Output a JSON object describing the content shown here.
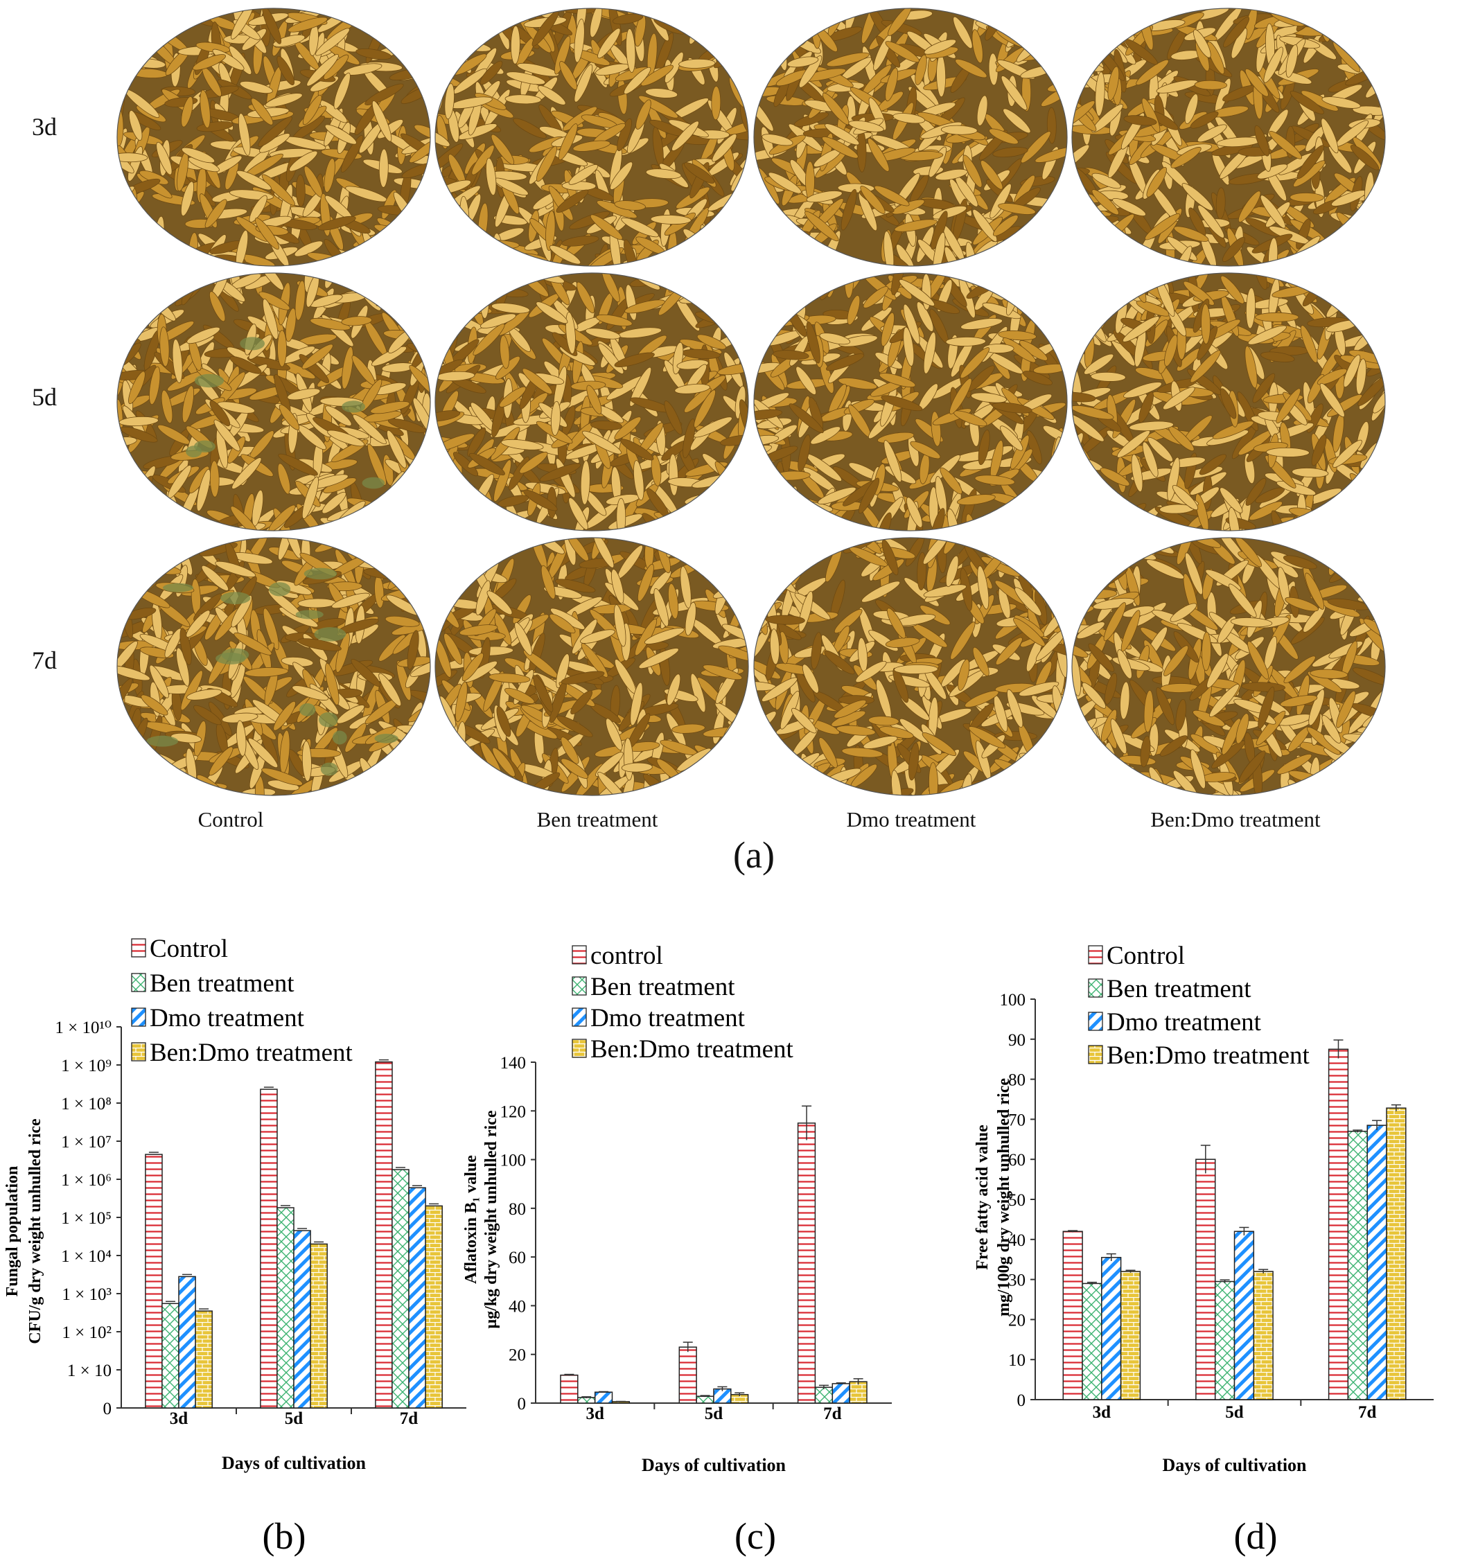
{
  "panel_a": {
    "tag": "(a)",
    "rows": [
      "3d",
      "5d",
      "7d"
    ],
    "columns": [
      "Control",
      "Ben  treatment",
      "Dmo treatment",
      "Ben:Dmo treatment"
    ],
    "colors": {
      "grain_base": "#c8922f",
      "grain_light": "#e8c069",
      "grain_dark": "#8a5d17",
      "mold": "#7a8a4a"
    }
  },
  "colors": {
    "control": "#d9262f",
    "ben": "#3cb371",
    "dmo": "#1e90ff",
    "bendmo": "#e8c53a"
  },
  "chart_data": [
    {
      "panel": "(b)",
      "type": "bar",
      "scale": "log",
      "categories": [
        "3d",
        "5d",
        "7d"
      ],
      "series": [
        {
          "name": "Control",
          "values": [
            4500000,
            230000000,
            1200000000
          ]
        },
        {
          "name": "Ben treatment",
          "values": [
            550,
            180000,
            1800000
          ]
        },
        {
          "name": "Dmo treatment",
          "values": [
            2800,
            45000,
            600000
          ]
        },
        {
          "name": "Ben:Dmo treatment",
          "values": [
            350,
            20000,
            200000
          ]
        }
      ],
      "y_ticks": [
        {
          "value": 1,
          "label": "0"
        },
        {
          "value": 10,
          "label": "1 × 10"
        },
        {
          "value": 100,
          "label": "1 × 10²"
        },
        {
          "value": 1000,
          "label": "1 × 10³"
        },
        {
          "value": 10000,
          "label": "1 × 10⁴"
        },
        {
          "value": 100000,
          "label": "1 × 10⁵"
        },
        {
          "value": 1000000,
          "label": "1 × 10⁶"
        },
        {
          "value": 10000000,
          "label": "1 × 10⁷"
        },
        {
          "value": 100000000,
          "label": "1 × 10⁸"
        },
        {
          "value": 1000000000,
          "label": "1 × 10⁹"
        },
        {
          "value": 10000000000,
          "label": "1 × 10¹⁰"
        }
      ],
      "ylim": [
        1,
        10000000000
      ],
      "xlabel": "Days of cultivation",
      "ylabel_line1": "Fungal population",
      "ylabel_line2": "CFU/g dry weight unhulled rice",
      "legend": [
        "Control",
        "Ben treatment",
        "Dmo treatment",
        "Ben:Dmo treatment"
      ]
    },
    {
      "panel": "(c)",
      "type": "bar",
      "categories": [
        "3d",
        "5d",
        "7d"
      ],
      "series": [
        {
          "name": "control",
          "values": [
            11.5,
            23,
            115
          ],
          "errors": [
            0.3,
            2.0,
            7.0
          ]
        },
        {
          "name": "Ben treatment",
          "values": [
            2.3,
            2.8,
            6.5
          ],
          "errors": [
            0.3,
            0.3,
            0.8
          ]
        },
        {
          "name": "Dmo treatment",
          "values": [
            4.5,
            5.8,
            8.0
          ],
          "errors": [
            0.2,
            0.9,
            0.3
          ]
        },
        {
          "name": "Ben:Dmo treatment",
          "values": [
            0.6,
            3.5,
            8.8
          ],
          "errors": [
            0.1,
            0.7,
            1.2
          ]
        }
      ],
      "y_ticks": [
        0,
        20,
        40,
        60,
        80,
        100,
        120,
        140
      ],
      "ylim": [
        0,
        140
      ],
      "xlabel": "Days of cultivation",
      "ylabel_line1": "Aflatoxin B₁ value",
      "ylabel_line2": "μg/kg dry weight unhulled rice",
      "legend": [
        "control",
        "Ben treatment",
        "Dmo treatment",
        "Ben:Dmo treatment"
      ]
    },
    {
      "panel": "(d)",
      "type": "bar",
      "categories": [
        "3d",
        "5d",
        "7d"
      ],
      "series": [
        {
          "name": "Control",
          "values": [
            42,
            60,
            87.5
          ],
          "errors": [
            0.2,
            3.5,
            2.3
          ]
        },
        {
          "name": "Ben treatment",
          "values": [
            29,
            29.5,
            67
          ],
          "errors": [
            0.3,
            0.4,
            0.3
          ]
        },
        {
          "name": "Dmo treatment",
          "values": [
            35.5,
            42,
            68.5
          ],
          "errors": [
            0.9,
            1.0,
            1.2
          ]
        },
        {
          "name": "Ben:Dmo treatment",
          "values": [
            32,
            32,
            72.8
          ],
          "errors": [
            0.3,
            0.5,
            0.8
          ]
        }
      ],
      "y_ticks": [
        0,
        10,
        20,
        30,
        40,
        50,
        60,
        70,
        80,
        90,
        100
      ],
      "ylim": [
        0,
        100
      ],
      "xlabel": "Days of cultivation",
      "ylabel_line1": "Free fatty acid value",
      "ylabel_line2": "mg/100g dry weight unhulled rice",
      "legend": [
        "Control",
        "Ben treatment",
        "Dmo treatment",
        "Ben:Dmo treatment"
      ]
    }
  ]
}
